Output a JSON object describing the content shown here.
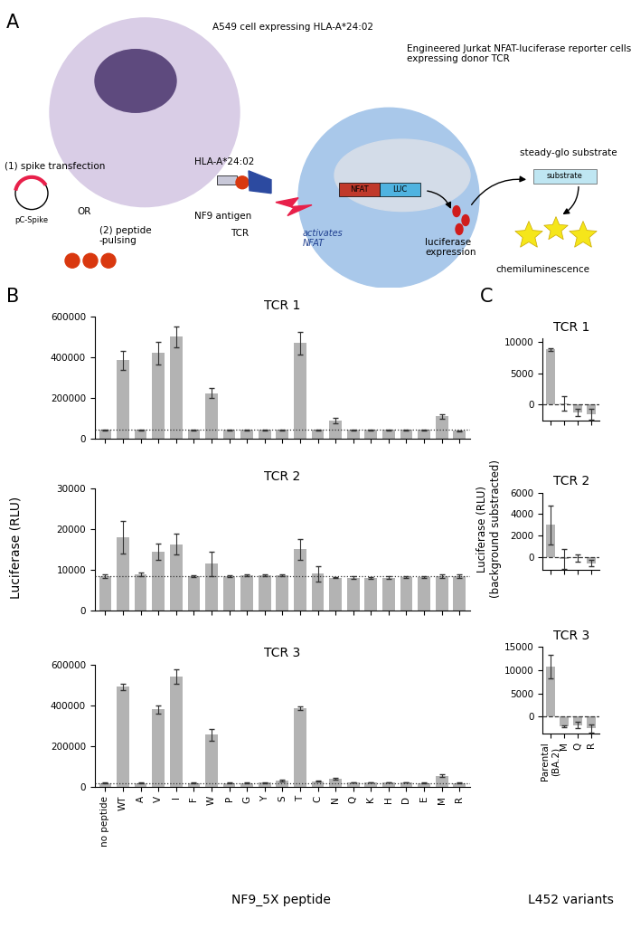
{
  "panel_labels": [
    "A",
    "B",
    "C"
  ],
  "figure_labels": {
    "B_ylabel": "Luciferase (RLU)",
    "B_xlabel": "NF9_5X peptide",
    "C_ylabel": "Luciferase (RLU)\n(background substracted)",
    "C_xlabel": "L452 variants"
  },
  "diagram": {
    "a549": "A549 cell expressing HLA-A*24:02",
    "jurkat": "Engineered Jurkat NFAT-luciferase reporter cells\nexpressing donor TCR",
    "spike": "(1) spike transfection",
    "plasmid": "pC-Spike",
    "or": "OR",
    "peptide": "(2) peptide\n-pulsing",
    "hla": "HLA-A*24:02",
    "antigen": "NF9 antigen",
    "tcr": "TCR",
    "activates": "activates\nNFAT",
    "nfat": "NFAT",
    "luc": "LUC",
    "luc_expr": "luciferase\nexpression",
    "substrate_name": "steady-glo substrate",
    "substrate": "substrate",
    "chemi": "chemiluminescence"
  },
  "chart_data": [
    {
      "type": "bar",
      "panel": "B",
      "title": "TCR 1",
      "color": "#b3b3b3",
      "tick_labels": "y",
      "categories": [
        "no peptide",
        "WT",
        "A",
        "V",
        "I",
        "F",
        "W",
        "P",
        "G",
        "Y",
        "S",
        "T",
        "C",
        "N",
        "Q",
        "K",
        "H",
        "D",
        "E",
        "M",
        "R"
      ],
      "values": [
        45000,
        385000,
        45000,
        420000,
        500000,
        45000,
        225000,
        45000,
        45000,
        45000,
        45000,
        470000,
        45000,
        90000,
        45000,
        45000,
        45000,
        45000,
        45000,
        110000,
        40000
      ],
      "errors": [
        2000,
        45000,
        2000,
        55000,
        50000,
        2000,
        25000,
        2000,
        2000,
        2000,
        2000,
        55000,
        2000,
        15000,
        2000,
        2000,
        2000,
        2000,
        2000,
        12000,
        2000
      ],
      "reference_line": 45000,
      "ylim": [
        0,
        600000
      ],
      "yticks": [
        0,
        200000,
        400000,
        600000
      ]
    },
    {
      "type": "bar",
      "panel": "B",
      "title": "TCR 2",
      "color": "#b3b3b3",
      "tick_labels": "y",
      "categories": [
        "no peptide",
        "WT",
        "A",
        "V",
        "I",
        "F",
        "W",
        "P",
        "G",
        "Y",
        "S",
        "T",
        "C",
        "N",
        "Q",
        "K",
        "H",
        "D",
        "E",
        "M",
        "R"
      ],
      "values": [
        8500,
        18000,
        8900,
        14500,
        16300,
        8400,
        11500,
        8400,
        8600,
        8700,
        8600,
        15000,
        9000,
        8100,
        8100,
        8000,
        8100,
        8200,
        8200,
        8400,
        8400
      ],
      "errors": [
        400,
        4000,
        400,
        2000,
        2500,
        200,
        3000,
        200,
        200,
        200,
        200,
        2500,
        1800,
        200,
        300,
        300,
        300,
        300,
        300,
        400,
        500
      ],
      "reference_line": 8500,
      "ylim": [
        0,
        30000
      ],
      "yticks": [
        0,
        10000,
        20000,
        30000
      ]
    },
    {
      "type": "bar",
      "panel": "B",
      "title": "TCR 3",
      "color": "#b3b3b3",
      "tick_labels": true,
      "categories": [
        "no peptide",
        "WT",
        "A",
        "V",
        "I",
        "F",
        "W",
        "P",
        "G",
        "Y",
        "S",
        "T",
        "C",
        "N",
        "Q",
        "K",
        "H",
        "D",
        "E",
        "M",
        "R"
      ],
      "values": [
        20000,
        490000,
        20000,
        380000,
        540000,
        20000,
        255000,
        20000,
        20000,
        22000,
        30000,
        385000,
        28000,
        40000,
        22000,
        22000,
        22000,
        22000,
        20000,
        55000,
        20000
      ],
      "errors": [
        1000,
        15000,
        1000,
        20000,
        35000,
        1000,
        30000,
        1000,
        1000,
        2000,
        4000,
        8000,
        3000,
        4000,
        1000,
        1000,
        1000,
        1000,
        1000,
        8000,
        1000
      ],
      "reference_line": 20000,
      "ylim": [
        0,
        600000
      ],
      "yticks": [
        0,
        200000,
        400000,
        600000
      ]
    },
    {
      "type": "bar",
      "panel": "C",
      "title": "TCR 1",
      "color": "#b3b3b3",
      "tick_labels": "y",
      "categories": [
        "Parental\n(BA.2)",
        "M",
        "Q",
        "R"
      ],
      "values": [
        8800,
        200,
        -1200,
        -1500
      ],
      "errors": [
        200,
        1100,
        600,
        900
      ],
      "reference_line": 0,
      "ylim": [
        -2500,
        10500
      ],
      "yticks": [
        0,
        5000,
        10000
      ]
    },
    {
      "type": "bar",
      "panel": "C",
      "title": "TCR 2",
      "color": "#b3b3b3",
      "tick_labels": "y",
      "categories": [
        "Parental\n(BA.2)",
        "M",
        "Q",
        "R"
      ],
      "values": [
        3000,
        -200,
        -100,
        -600
      ],
      "errors": [
        1800,
        900,
        300,
        300
      ],
      "reference_line": 0,
      "ylim": [
        -1200,
        6000
      ],
      "yticks": [
        0,
        2000,
        4000,
        6000
      ]
    },
    {
      "type": "bar",
      "panel": "C",
      "title": "TCR 3",
      "color": "#b3b3b3",
      "tick_labels": true,
      "categories": [
        "Parental\n(BA.2)",
        "M",
        "Q",
        "R"
      ],
      "values": [
        10700,
        -2000,
        -1800,
        -2500
      ],
      "errors": [
        2500,
        200,
        700,
        900
      ],
      "reference_line": 0,
      "ylim": [
        -3500,
        15000
      ],
      "yticks": [
        0,
        5000,
        10000,
        15000
      ]
    }
  ]
}
